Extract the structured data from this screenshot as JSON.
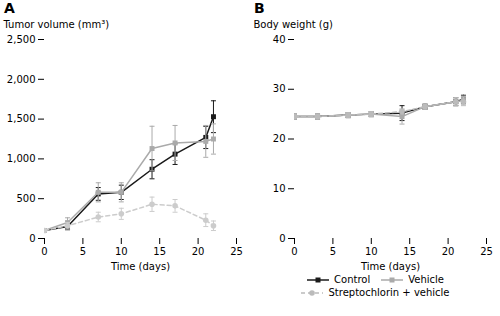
{
  "chart_data": [
    {
      "type": "line",
      "title": "A",
      "xlabel": "Time (days)",
      "ylabel": "Tumor volume (mm³)",
      "xlim": [
        0,
        25
      ],
      "ylim": [
        0,
        2500
      ],
      "xticks": [
        0,
        5,
        10,
        15,
        20,
        25
      ],
      "yticks": [
        0,
        500,
        {
          "value": 1000,
          "label": "1,000"
        },
        {
          "value": 1500,
          "label": "1,500"
        },
        {
          "value": 2000,
          "label": "2,000"
        },
        {
          "value": 2500,
          "label": "2,500"
        }
      ],
      "x": [
        0,
        3,
        7,
        10,
        14,
        17,
        21,
        22
      ],
      "series": [
        {
          "color": "#1a1a1a",
          "marker": "square",
          "line_style": "solid",
          "values": [
            100,
            150,
            560,
            580,
            870,
            1060,
            1270,
            1530
          ],
          "yerr": [
            20,
            40,
            80,
            90,
            120,
            130,
            140,
            200
          ]
        },
        {
          "color": "#aaaaaa",
          "marker": "square",
          "line_style": "solid",
          "values": [
            100,
            200,
            580,
            580,
            1130,
            1200,
            1220,
            1250
          ],
          "yerr": [
            20,
            60,
            120,
            120,
            280,
            220,
            200,
            190
          ]
        },
        {
          "color": "#cccccc",
          "marker": "circle",
          "line_style": "dashed",
          "values": [
            100,
            160,
            270,
            310,
            430,
            410,
            230,
            160
          ],
          "yerr": [
            15,
            40,
            60,
            70,
            90,
            80,
            80,
            60
          ]
        }
      ]
    },
    {
      "type": "line",
      "title": "B",
      "xlabel": "Time (days)",
      "ylabel": "Body weight (g)",
      "xlim": [
        0,
        25
      ],
      "ylim": [
        0,
        40
      ],
      "xticks": [
        0,
        5,
        10,
        15,
        20,
        25
      ],
      "yticks": [
        0,
        10,
        20,
        30,
        40
      ],
      "legend": "bottom",
      "x": [
        0,
        3,
        7,
        10,
        14,
        17,
        21,
        22
      ],
      "series": [
        {
          "name": "Control",
          "color": "#1a1a1a",
          "marker": "square",
          "line_style": "solid",
          "values": [
            24.5,
            24.5,
            24.8,
            25.0,
            25.2,
            26.5,
            27.5,
            28.0
          ],
          "yerr": [
            0.5,
            0.5,
            0.5,
            0.5,
            1.5,
            0.5,
            0.8,
            0.8
          ]
        },
        {
          "name": "Vehicle",
          "color": "#aaaaaa",
          "marker": "square",
          "line_style": "solid",
          "values": [
            24.5,
            24.5,
            24.8,
            25.0,
            24.5,
            26.5,
            27.5,
            27.8
          ],
          "yerr": [
            0.5,
            0.5,
            0.5,
            0.5,
            1.5,
            0.5,
            0.8,
            0.8
          ]
        },
        {
          "name": "Streptochlorin + vehicle",
          "color": "#bbbbbb",
          "marker": "circle",
          "line_style": "dashed",
          "values": [
            24.5,
            24.5,
            24.8,
            25.0,
            25.5,
            26.5,
            27.5,
            27.5
          ],
          "yerr": [
            0.5,
            0.5,
            0.5,
            0.5,
            0.5,
            0.5,
            0.8,
            0.8
          ]
        }
      ]
    }
  ]
}
